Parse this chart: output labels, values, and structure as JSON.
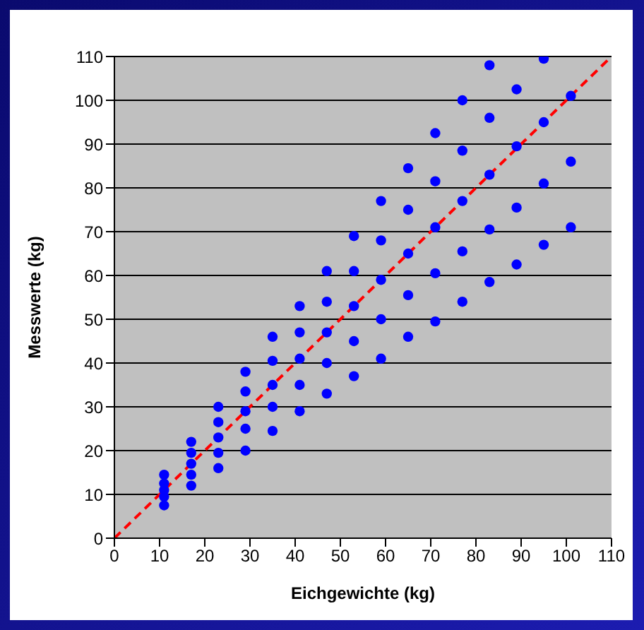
{
  "chart_data": {
    "type": "scatter",
    "xlabel": "Eichgewichte (kg)",
    "ylabel": "Messwerte (kg)",
    "xlim": [
      0,
      110
    ],
    "ylim": [
      0,
      110
    ],
    "xticks": [
      0,
      10,
      20,
      30,
      40,
      50,
      60,
      70,
      80,
      90,
      100,
      110
    ],
    "yticks": [
      0,
      10,
      20,
      30,
      40,
      50,
      60,
      70,
      80,
      90,
      100,
      110
    ],
    "grid": "y",
    "marker": "circle",
    "series": [
      {
        "color": "#0000ff",
        "x": [
          11,
          11,
          11,
          11,
          11,
          17,
          17,
          17,
          17,
          17,
          23,
          23,
          23,
          23,
          23,
          29,
          29,
          29,
          29,
          29,
          35,
          35,
          35,
          35,
          35,
          41,
          41,
          41,
          41,
          41,
          47,
          47,
          47,
          47,
          47,
          53,
          53,
          53,
          53,
          53,
          59,
          59,
          59,
          59,
          59,
          65,
          65,
          65,
          65,
          65,
          71,
          71,
          71,
          71,
          71,
          77,
          77,
          77,
          77,
          77,
          83,
          83,
          83,
          83,
          83,
          89,
          89,
          89,
          89,
          95,
          95,
          95,
          95,
          101,
          101,
          101
        ],
        "values": [
          14.5,
          12.5,
          11,
          9.5,
          7.5,
          22,
          19.5,
          17,
          14.5,
          12,
          30,
          26.5,
          23,
          19.5,
          16,
          38,
          33.5,
          29,
          25,
          20,
          46,
          40.5,
          35,
          30,
          24.5,
          53,
          47,
          41,
          35,
          29,
          61,
          54,
          47,
          40,
          33,
          69,
          61,
          53,
          45,
          37,
          77,
          68,
          59,
          50,
          41,
          84.5,
          75,
          65,
          55.5,
          46,
          92.5,
          81.5,
          71,
          60.5,
          49.5,
          100,
          88.5,
          77,
          65.5,
          54,
          108,
          96,
          83,
          70.5,
          58.5,
          102.5,
          89.5,
          75.5,
          62.5,
          109.5,
          95,
          81,
          67,
          101,
          86,
          71
        ]
      },
      {
        "type": "line",
        "color": "#ff0000",
        "line_style": "dashed",
        "marker": "none",
        "x": [
          0,
          110
        ],
        "values": [
          0,
          110
        ]
      }
    ]
  }
}
